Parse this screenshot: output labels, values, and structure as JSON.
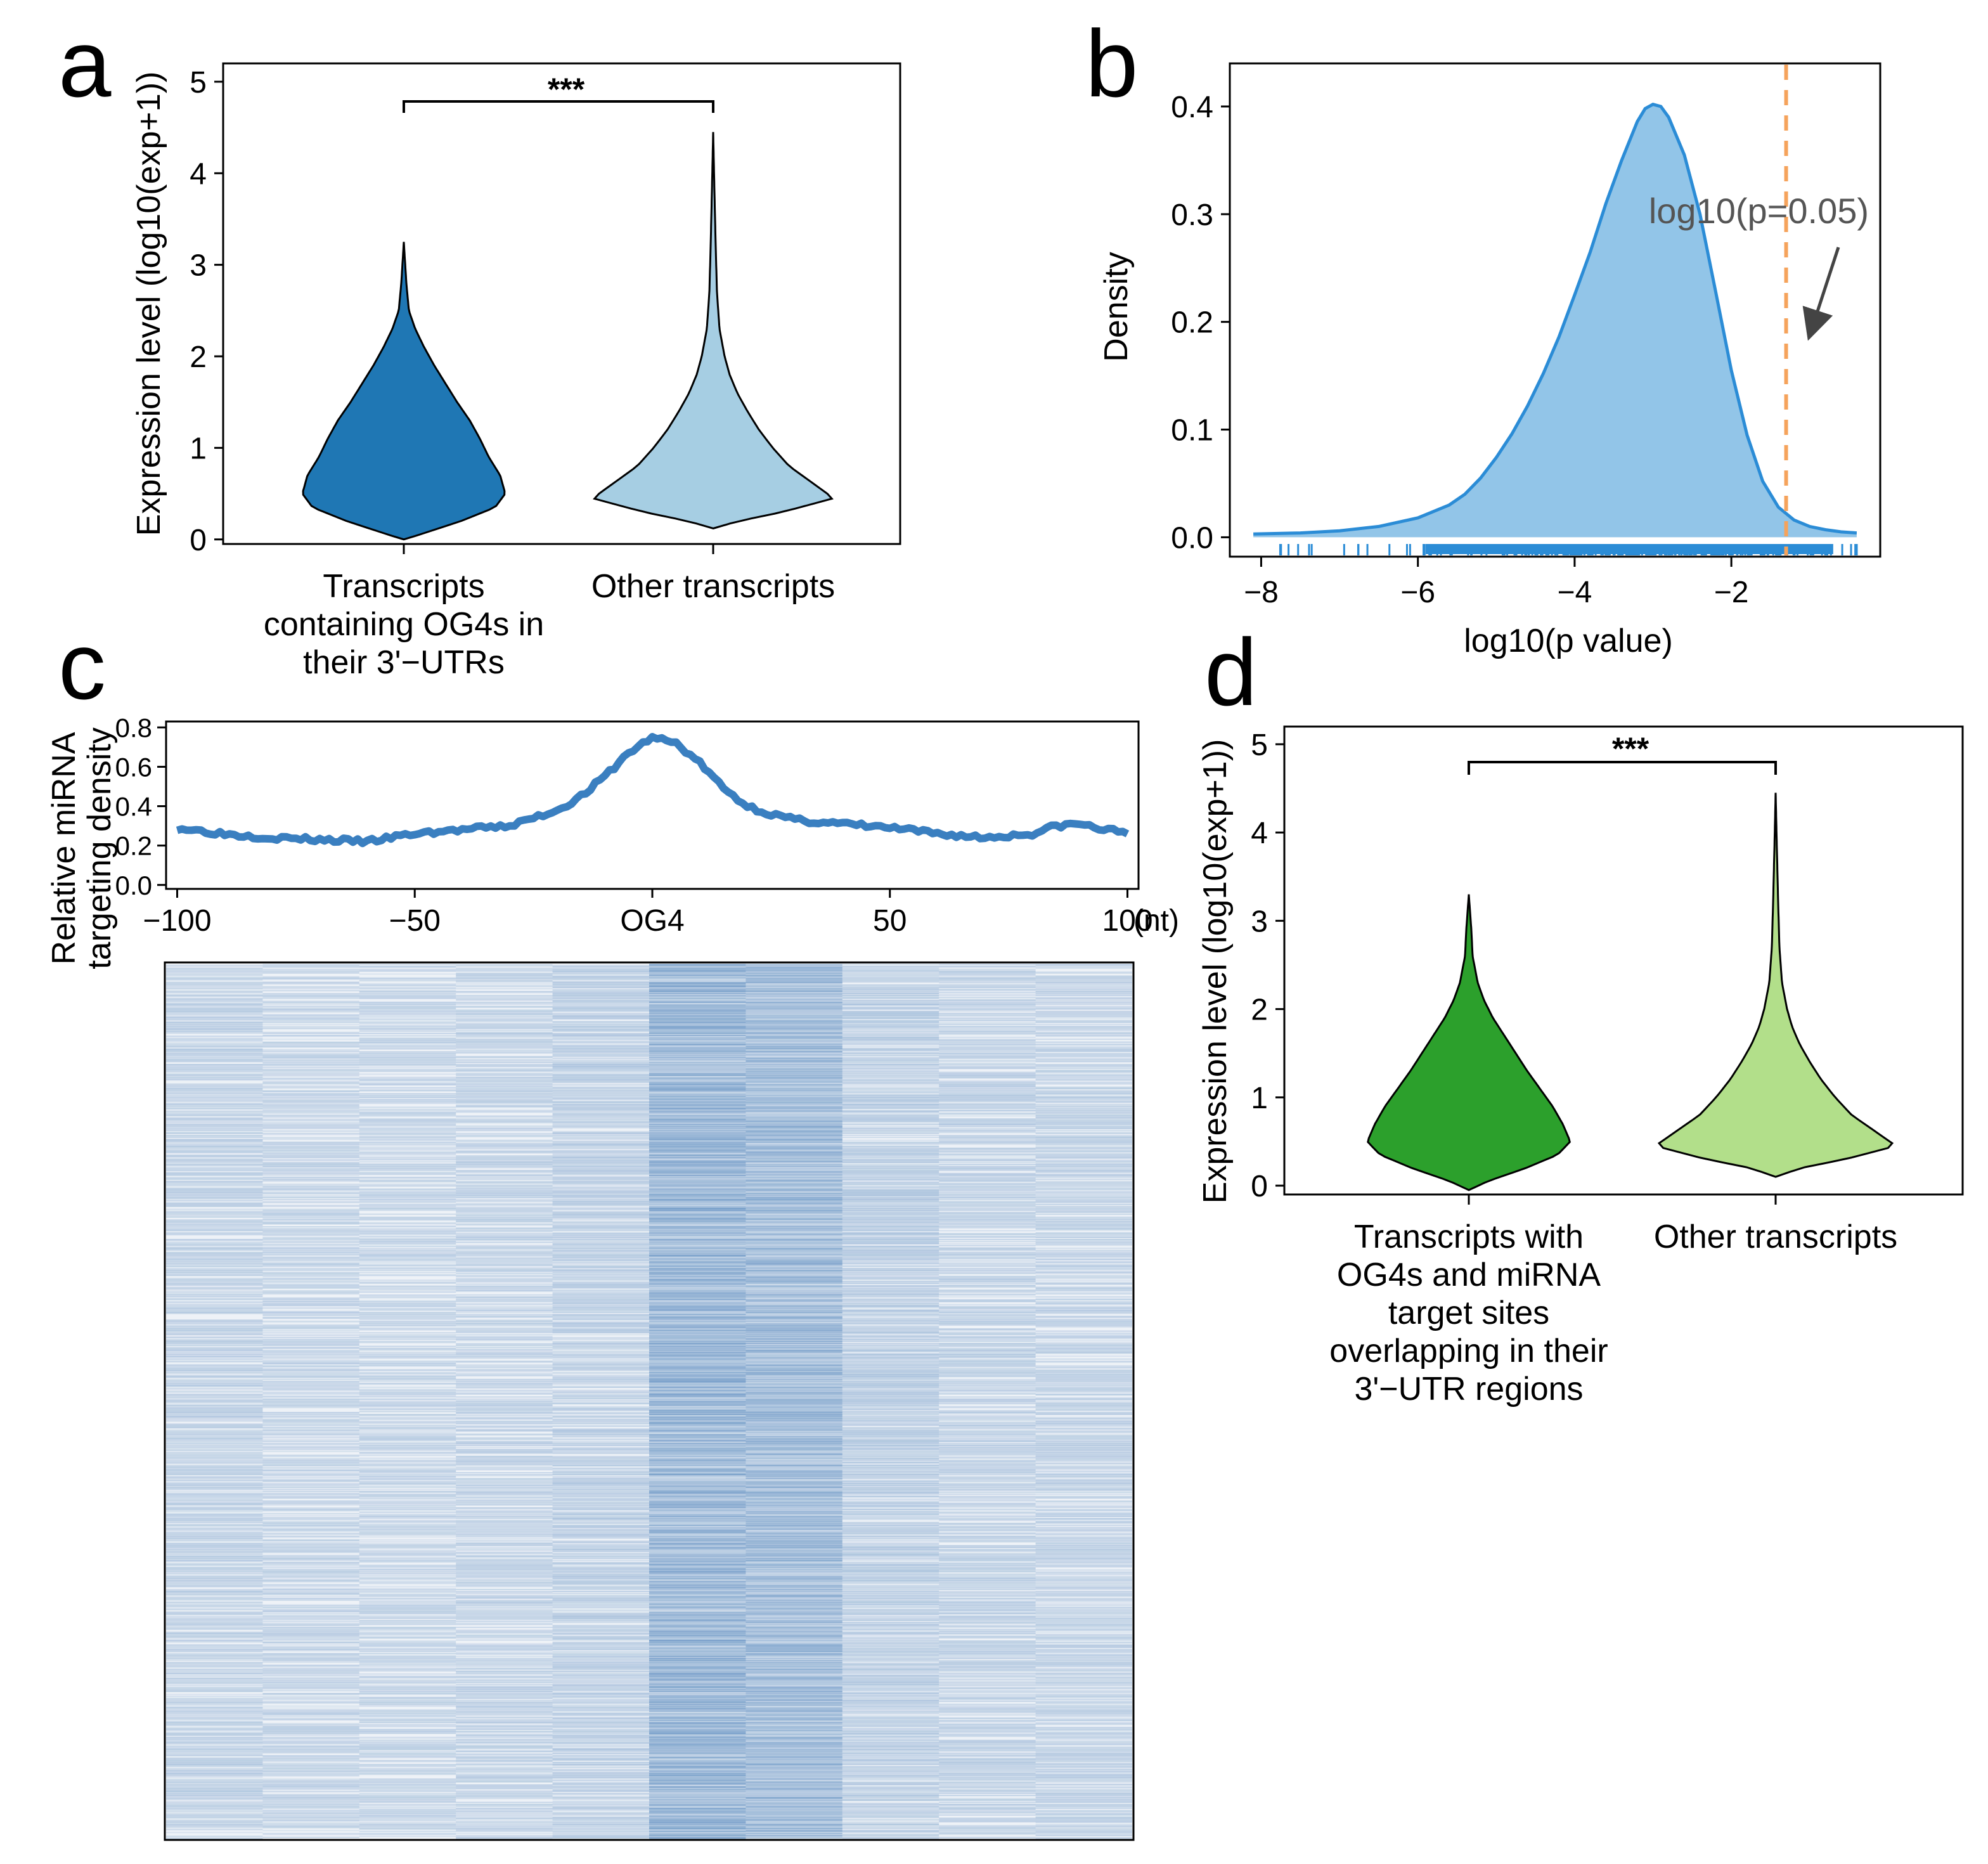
{
  "panels": {
    "a": {
      "label": "a"
    },
    "b": {
      "label": "b"
    },
    "c": {
      "label": "c"
    },
    "d": {
      "label": "d"
    }
  },
  "chart_data": [
    {
      "panel": "a",
      "type": "violin",
      "ylabel": "Expression level (log10(exp+1))",
      "ylim": [
        -0.05,
        5.2
      ],
      "yticks": [
        0,
        1,
        2,
        3,
        4,
        5
      ],
      "categories": [
        "Transcripts\ncontaining OG4s in\ntheir 3'−UTRs",
        "Other transcripts"
      ],
      "colors": [
        "#1f77b4",
        "#a6cee3"
      ],
      "series": [
        {
          "name": "Transcripts containing OG4s in their 3'-UTRs",
          "min": 0.0,
          "max": 3.25,
          "profile": [
            [
              0.0,
              0.0
            ],
            [
              0.05,
              0.12
            ],
            [
              0.2,
              0.45
            ],
            [
              0.35,
              0.72
            ],
            [
              0.5,
              0.8
            ],
            [
              0.7,
              0.76
            ],
            [
              0.9,
              0.67
            ],
            [
              1.1,
              0.6
            ],
            [
              1.3,
              0.52
            ],
            [
              1.5,
              0.42
            ],
            [
              1.7,
              0.33
            ],
            [
              1.9,
              0.24
            ],
            [
              2.1,
              0.16
            ],
            [
              2.3,
              0.09
            ],
            [
              2.5,
              0.04
            ],
            [
              2.8,
              0.02
            ],
            [
              3.25,
              0.0
            ]
          ]
        },
        {
          "name": "Other transcripts",
          "min": 0.12,
          "max": 4.45,
          "profile": [
            [
              0.12,
              0.0
            ],
            [
              0.2,
              0.2
            ],
            [
              0.3,
              0.55
            ],
            [
              0.45,
              0.95
            ],
            [
              0.6,
              0.8
            ],
            [
              0.8,
              0.6
            ],
            [
              1.0,
              0.47
            ],
            [
              1.2,
              0.36
            ],
            [
              1.4,
              0.27
            ],
            [
              1.6,
              0.19
            ],
            [
              1.8,
              0.13
            ],
            [
              2.0,
              0.09
            ],
            [
              2.3,
              0.05
            ],
            [
              2.7,
              0.03
            ],
            [
              3.2,
              0.02
            ],
            [
              3.8,
              0.01
            ],
            [
              4.45,
              0.0
            ]
          ]
        }
      ],
      "annotation": "***"
    },
    {
      "panel": "b",
      "type": "area",
      "xlabel": "log10(p value)",
      "ylabel": "Density",
      "xlim": [
        -8.4,
        -0.1
      ],
      "ylim": [
        -0.018,
        0.44
      ],
      "xticks": [
        -8,
        -6,
        -4,
        -2
      ],
      "yticks": [
        0.0,
        0.1,
        0.2,
        0.3,
        0.4
      ],
      "ytick_labels": [
        "0.0",
        "0.1",
        "0.2",
        "0.3",
        "0.4"
      ],
      "x": [
        -8.1,
        -7.5,
        -7.0,
        -6.5,
        -6.0,
        -5.8,
        -5.6,
        -5.4,
        -5.2,
        -5.0,
        -4.8,
        -4.6,
        -4.4,
        -4.2,
        -4.0,
        -3.8,
        -3.6,
        -3.4,
        -3.2,
        -3.1,
        -3.0,
        -2.9,
        -2.8,
        -2.6,
        -2.4,
        -2.2,
        -2.0,
        -1.8,
        -1.6,
        -1.4,
        -1.2,
        -1.0,
        -0.8,
        -0.6,
        -0.4
      ],
      "density": [
        0.003,
        0.004,
        0.006,
        0.01,
        0.018,
        0.024,
        0.03,
        0.04,
        0.055,
        0.074,
        0.096,
        0.122,
        0.152,
        0.186,
        0.225,
        0.265,
        0.31,
        0.35,
        0.386,
        0.398,
        0.402,
        0.4,
        0.39,
        0.355,
        0.3,
        0.228,
        0.155,
        0.095,
        0.052,
        0.028,
        0.016,
        0.01,
        0.007,
        0.005,
        0.004
      ],
      "line_color": "#2b8cd6",
      "fill_color": "#92c5e8",
      "threshold": -1.301,
      "threshold_color": "#f5a35c",
      "annotation": "log10(p=0.05)",
      "rug_count": 260
    },
    {
      "panel": "c",
      "type": "line",
      "ylabel": "Relative miRNA\ntargeting density",
      "xlim": [
        -101,
        101
      ],
      "ylim": [
        -0.02,
        0.83
      ],
      "xticks": [
        -100,
        -50,
        0,
        50,
        100
      ],
      "xtick_labels": [
        "−100",
        "−50",
        "OG4",
        "50",
        "100"
      ],
      "yticks": [
        0.0,
        0.2,
        0.4,
        0.6,
        0.8
      ],
      "ytick_labels": [
        "0.0",
        "0.2",
        "0.4",
        "0.6",
        "0.8"
      ],
      "unit_label": "(nt)",
      "x": [
        -100,
        -90,
        -80,
        -70,
        -60,
        -55,
        -50,
        -40,
        -30,
        -20,
        -15,
        -10,
        -5,
        0,
        5,
        10,
        15,
        20,
        25,
        30,
        40,
        50,
        60,
        70,
        80,
        85,
        90,
        95,
        100
      ],
      "y": [
        0.29,
        0.26,
        0.24,
        0.23,
        0.22,
        0.24,
        0.26,
        0.28,
        0.3,
        0.38,
        0.45,
        0.55,
        0.67,
        0.75,
        0.72,
        0.62,
        0.49,
        0.4,
        0.36,
        0.33,
        0.31,
        0.29,
        0.26,
        0.24,
        0.26,
        0.3,
        0.31,
        0.28,
        0.27
      ],
      "color": "#3a7fc0",
      "heatmap": {
        "columns": 10,
        "rows": 900,
        "column_intensity": [
          0.28,
          0.26,
          0.25,
          0.27,
          0.3,
          0.62,
          0.55,
          0.32,
          0.28,
          0.27
        ],
        "color": "#4a7fb8"
      }
    },
    {
      "panel": "d",
      "type": "violin",
      "ylabel": "Expression level (log10(exp+1))",
      "ylim": [
        -0.1,
        5.2
      ],
      "yticks": [
        0,
        1,
        2,
        3,
        4,
        5
      ],
      "categories": [
        "Transcripts with\nOG4s and miRNA\ntarget sites\noverlapping in their\n3'−UTR regions",
        "Other transcripts"
      ],
      "colors": [
        "#2ca02c",
        "#b2df8a"
      ],
      "series": [
        {
          "name": "Transcripts with OG4s and miRNA target sites overlapping in their 3'-UTR regions",
          "min": -0.05,
          "max": 3.3,
          "profile": [
            [
              -0.05,
              0.0
            ],
            [
              0.05,
              0.15
            ],
            [
              0.2,
              0.45
            ],
            [
              0.35,
              0.7
            ],
            [
              0.5,
              0.8
            ],
            [
              0.7,
              0.74
            ],
            [
              0.9,
              0.66
            ],
            [
              1.1,
              0.56
            ],
            [
              1.3,
              0.46
            ],
            [
              1.5,
              0.37
            ],
            [
              1.7,
              0.28
            ],
            [
              1.9,
              0.19
            ],
            [
              2.1,
              0.12
            ],
            [
              2.3,
              0.07
            ],
            [
              2.6,
              0.03
            ],
            [
              2.9,
              0.02
            ],
            [
              3.3,
              0.0
            ]
          ]
        },
        {
          "name": "Other transcripts",
          "min": 0.1,
          "max": 4.45,
          "profile": [
            [
              0.1,
              0.0
            ],
            [
              0.2,
              0.2
            ],
            [
              0.3,
              0.55
            ],
            [
              0.45,
              0.95
            ],
            [
              0.6,
              0.8
            ],
            [
              0.8,
              0.6
            ],
            [
              1.0,
              0.47
            ],
            [
              1.2,
              0.36
            ],
            [
              1.4,
              0.27
            ],
            [
              1.6,
              0.19
            ],
            [
              1.8,
              0.13
            ],
            [
              2.0,
              0.09
            ],
            [
              2.3,
              0.05
            ],
            [
              2.7,
              0.03
            ],
            [
              3.2,
              0.02
            ],
            [
              3.8,
              0.01
            ],
            [
              4.45,
              0.0
            ]
          ]
        }
      ],
      "annotation": "***"
    }
  ]
}
